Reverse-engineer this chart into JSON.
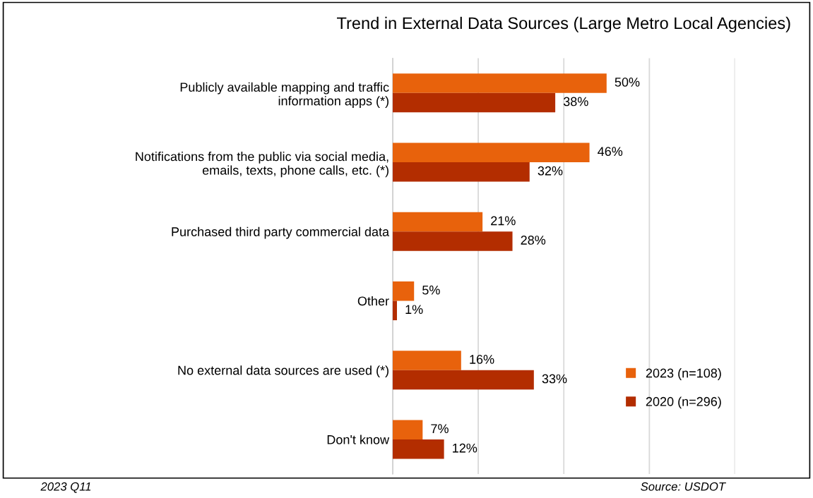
{
  "chart_data": {
    "type": "bar",
    "orientation": "horizontal",
    "title": "Trend in External Data Sources (Large Metro Local Agencies)",
    "categories": [
      "Publicly available mapping and traffic\ninformation apps (*)",
      "Notifications from the public via social media,\nemails, texts, phone calls, etc. (*)",
      "Purchased third party commercial data",
      "Other",
      "No external data sources are used (*)",
      "Don't know"
    ],
    "series": [
      {
        "name": "2023 (n=108)",
        "color": "#e8620c",
        "values": [
          50,
          46,
          21,
          5,
          16,
          7
        ],
        "value_labels": [
          "50%",
          "46%",
          "21%",
          "5%",
          "16%",
          "7%"
        ]
      },
      {
        "name": "2020 (n=296)",
        "color": "#b32d00",
        "values": [
          38,
          32,
          28,
          1,
          33,
          12
        ],
        "value_labels": [
          "38%",
          "32%",
          "28%",
          "1%",
          "33%",
          "12%"
        ]
      }
    ],
    "xlim": [
      0,
      80
    ],
    "xticks": [
      {
        "value": 0,
        "label": null
      },
      {
        "value": 20,
        "label": null
      },
      {
        "value": 40,
        "label": null
      },
      {
        "value": 60,
        "label": null
      },
      {
        "value": 80,
        "label": null
      }
    ],
    "grid": "x",
    "legend": "bottom right",
    "tick_labels": "y",
    "annotations": [
      "2023 Q11",
      "Source: USDOT"
    ]
  }
}
